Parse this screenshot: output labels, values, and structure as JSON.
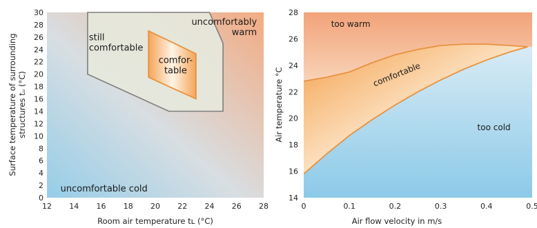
{
  "colors": {
    "orange": "#e8913e",
    "outline_gray": "#7d7d7d",
    "bg_warm": "#f1ad86",
    "bg_cold": "#9ccfe8",
    "tick_text": "#222222"
  },
  "chart_data": [
    {
      "type": "area",
      "xlabel": "Room air temperature tʟ (°C)",
      "ylabel_line1": "Surface temperature of surrounding",
      "ylabel_line2": "structures tᵤ (°C)",
      "xlim": [
        12,
        28
      ],
      "ylim": [
        0,
        30
      ],
      "xticks": [
        12,
        14,
        16,
        18,
        20,
        22,
        24,
        26,
        28
      ],
      "yticks": [
        0,
        2,
        4,
        6,
        8,
        10,
        12,
        14,
        16,
        18,
        20,
        22,
        24,
        26,
        28,
        30
      ],
      "grid": false,
      "regions": [
        {
          "name": "still comfortable",
          "label_lines": [
            "still",
            "comfortable"
          ],
          "label_at": [
            15.1,
            25.5
          ],
          "polygon": [
            [
              15,
              30
            ],
            [
              24,
              30
            ],
            [
              25,
              25
            ],
            [
              25,
              14
            ],
            [
              21,
              14
            ],
            [
              15,
              20
            ]
          ]
        },
        {
          "name": "comfortable",
          "label_lines": [
            "comfor-",
            "table"
          ],
          "label_at": [
            21.5,
            21.8
          ],
          "polygon": [
            [
              19.5,
              27
            ],
            [
              23,
              23.3
            ],
            [
              23,
              16
            ],
            [
              19.5,
              19.5
            ]
          ]
        }
      ],
      "annotations": [
        {
          "lines": [
            "uncomfortably",
            "warm"
          ],
          "at": [
            27.5,
            28.0
          ],
          "anchor": "end"
        },
        {
          "lines": [
            "uncomfortable cold"
          ],
          "at": [
            13.0,
            1.0
          ],
          "anchor": "start"
        }
      ]
    },
    {
      "type": "area",
      "xlabel": "Air flow velocity in m/s",
      "ylabel": "Air temperature °C",
      "xlim": [
        0,
        0.5
      ],
      "ylim": [
        14,
        28
      ],
      "xticks": [
        0,
        0.1,
        0.2,
        0.3,
        0.4,
        0.5
      ],
      "xtick_labels": [
        "0",
        "0.1",
        "0.2",
        "0.3",
        "0.4",
        "0.5"
      ],
      "yticks": [
        14,
        16,
        18,
        20,
        22,
        24,
        26,
        28
      ],
      "grid": false,
      "upper_boundary": {
        "x": [
          0,
          0.05,
          0.1,
          0.15,
          0.2,
          0.25,
          0.3,
          0.35,
          0.4,
          0.45,
          0.49
        ],
        "y": [
          22.8,
          23.1,
          23.5,
          24.2,
          24.8,
          25.2,
          25.5,
          25.6,
          25.6,
          25.5,
          25.4
        ]
      },
      "lower_boundary": {
        "x": [
          0,
          0.05,
          0.1,
          0.15,
          0.2,
          0.25,
          0.3,
          0.35,
          0.4,
          0.45,
          0.49
        ],
        "y": [
          15.8,
          17.3,
          18.7,
          19.9,
          21.0,
          22.0,
          22.9,
          23.7,
          24.4,
          25.0,
          25.4
        ]
      },
      "labels": [
        {
          "text": "too warm",
          "at": [
            0.06,
            26.9
          ],
          "rotate": 0
        },
        {
          "text": "comfortable",
          "at": [
            0.155,
            22.4
          ],
          "rotate": -22
        },
        {
          "text": "too cold",
          "at": [
            0.38,
            19.1
          ],
          "rotate": 0
        }
      ]
    }
  ]
}
